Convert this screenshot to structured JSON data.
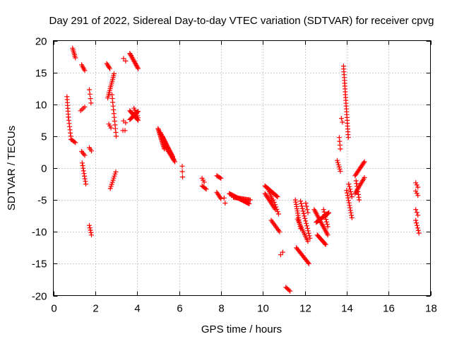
{
  "chart_data": {
    "type": "scatter",
    "title": "Day 291 of 2022, Sidereal Day-to-day VTEC variation (SDTVAR) for receiver cpvg",
    "xlabel": "GPS time / hours",
    "ylabel": "SDTVAR / TECUs",
    "xlim": [
      0,
      18
    ],
    "ylim": [
      -20,
      20
    ],
    "x_ticks": [
      0,
      2,
      4,
      6,
      8,
      10,
      12,
      14,
      16,
      18
    ],
    "y_ticks": [
      -20,
      -15,
      -10,
      -5,
      0,
      5,
      10,
      15,
      20
    ],
    "x_tick_labels": [
      "0",
      "2",
      "4",
      "6",
      "8",
      "10",
      "12",
      "14",
      "16",
      "18"
    ],
    "y_tick_labels": [
      "-20",
      "-15",
      "-10",
      "-5",
      "0",
      "5",
      "10",
      "15",
      "20"
    ],
    "grid": true,
    "marker": "+",
    "color": "#ff0000",
    "series": [
      {
        "name": "SDTVAR",
        "segments": [
          {
            "x0": 0.65,
            "y0": 11.2,
            "x1": 0.72,
            "y1": 8.0,
            "n": 8
          },
          {
            "x0": 0.72,
            "y0": 8.0,
            "x1": 0.85,
            "y1": 4.5,
            "n": 8
          },
          {
            "x0": 0.85,
            "y0": 4.5,
            "x1": 1.05,
            "y1": 4.0,
            "n": 5
          },
          {
            "x0": 0.92,
            "y0": 18.8,
            "x1": 1.05,
            "y1": 17.3,
            "n": 7
          },
          {
            "x0": 1.35,
            "y0": 16.2,
            "x1": 1.5,
            "y1": 15.3,
            "n": 5
          },
          {
            "x0": 1.3,
            "y0": 9.0,
            "x1": 1.5,
            "y1": 9.6,
            "n": 4
          },
          {
            "x0": 1.35,
            "y0": 2.6,
            "x1": 1.5,
            "y1": 2.0,
            "n": 4
          },
          {
            "x0": 1.38,
            "y0": 0.8,
            "x1": 1.55,
            "y1": -2.5,
            "n": 9
          },
          {
            "x0": 1.72,
            "y0": 12.3,
            "x1": 1.8,
            "y1": 10.2,
            "n": 4
          },
          {
            "x0": 1.72,
            "y0": 3.2,
            "x1": 1.82,
            "y1": 2.7,
            "n": 3
          },
          {
            "x0": 1.72,
            "y0": -9.0,
            "x1": 1.82,
            "y1": -10.5,
            "n": 5
          },
          {
            "x0": 2.55,
            "y0": 16.4,
            "x1": 2.7,
            "y1": 15.6,
            "n": 5
          },
          {
            "x0": 2.6,
            "y0": 11.0,
            "x1": 2.9,
            "y1": 14.8,
            "n": 14
          },
          {
            "x0": 2.65,
            "y0": 6.9,
            "x1": 2.75,
            "y1": 6.3,
            "n": 3
          },
          {
            "x0": 2.72,
            "y0": -3.2,
            "x1": 2.98,
            "y1": -0.6,
            "n": 9
          },
          {
            "x0": 2.8,
            "y0": 11.5,
            "x1": 3.0,
            "y1": 5.0,
            "n": 12
          },
          {
            "x0": 3.35,
            "y0": 17.2,
            "x1": 3.45,
            "y1": 16.8,
            "n": 2
          },
          {
            "x0": 3.35,
            "y0": 7.4,
            "x1": 3.45,
            "y1": 7.1,
            "n": 2
          },
          {
            "x0": 3.32,
            "y0": 5.9,
            "x1": 3.42,
            "y1": 5.9,
            "n": 2
          },
          {
            "x0": 3.65,
            "y0": 18.0,
            "x1": 4.05,
            "y1": 15.6,
            "n": 15
          },
          {
            "x0": 3.65,
            "y0": 7.6,
            "x1": 4.05,
            "y1": 8.9,
            "n": 12
          },
          {
            "x0": 3.65,
            "y0": 9.0,
            "x1": 4.05,
            "y1": 7.5,
            "n": 12
          },
          {
            "x0": 3.85,
            "y0": 9.4,
            "x1": 4.05,
            "y1": 7.9,
            "n": 6
          },
          {
            "x0": 5.0,
            "y0": 6.2,
            "x1": 5.3,
            "y1": 3.0,
            "n": 18
          },
          {
            "x0": 5.1,
            "y0": 5.6,
            "x1": 5.7,
            "y1": 1.8,
            "n": 22
          },
          {
            "x0": 5.2,
            "y0": 5.0,
            "x1": 5.75,
            "y1": 1.3,
            "n": 22
          },
          {
            "x0": 5.3,
            "y0": 3.6,
            "x1": 5.8,
            "y1": 1.0,
            "n": 14
          },
          {
            "x0": 6.15,
            "y0": 0.3,
            "x1": 6.17,
            "y1": -1.4,
            "n": 3
          },
          {
            "x0": 7.1,
            "y0": -1.6,
            "x1": 7.2,
            "y1": -2.2,
            "n": 3
          },
          {
            "x0": 7.1,
            "y0": -2.8,
            "x1": 7.3,
            "y1": -3.3,
            "n": 5
          },
          {
            "x0": 7.8,
            "y0": -1.2,
            "x1": 8.0,
            "y1": -1.6,
            "n": 5
          },
          {
            "x0": 7.8,
            "y0": -3.8,
            "x1": 8.0,
            "y1": -4.8,
            "n": 6
          },
          {
            "x0": 8.15,
            "y0": -4.7,
            "x1": 8.2,
            "y1": -5.5,
            "n": 2
          },
          {
            "x0": 8.4,
            "y0": -4.0,
            "x1": 9.35,
            "y1": -5.6,
            "n": 26
          },
          {
            "x0": 8.6,
            "y0": -4.6,
            "x1": 9.4,
            "y1": -5.0,
            "n": 18
          },
          {
            "x0": 10.1,
            "y0": -2.8,
            "x1": 10.7,
            "y1": -4.5,
            "n": 18
          },
          {
            "x0": 10.1,
            "y0": -4.0,
            "x1": 10.6,
            "y1": -6.5,
            "n": 14
          },
          {
            "x0": 10.25,
            "y0": -3.2,
            "x1": 10.45,
            "y1": -5.0,
            "n": 8
          },
          {
            "x0": 10.4,
            "y0": -8.2,
            "x1": 10.8,
            "y1": -10.0,
            "n": 10
          },
          {
            "x0": 10.5,
            "y0": -5.0,
            "x1": 10.75,
            "y1": -7.2,
            "n": 7
          },
          {
            "x0": 10.85,
            "y0": -13.6,
            "x1": 10.95,
            "y1": -13.2,
            "n": 2
          },
          {
            "x0": 11.1,
            "y0": -18.7,
            "x1": 11.3,
            "y1": -19.3,
            "n": 5
          },
          {
            "x0": 11.55,
            "y0": -5.0,
            "x1": 11.8,
            "y1": -9.5,
            "n": 14
          },
          {
            "x0": 11.6,
            "y0": -12.5,
            "x1": 12.2,
            "y1": -15.0,
            "n": 16
          },
          {
            "x0": 11.65,
            "y0": -8.0,
            "x1": 12.15,
            "y1": -11.5,
            "n": 14
          },
          {
            "x0": 11.8,
            "y0": -5.2,
            "x1": 12.25,
            "y1": -11.0,
            "n": 16
          },
          {
            "x0": 12.05,
            "y0": -5.5,
            "x1": 12.15,
            "y1": -7.0,
            "n": 4
          },
          {
            "x0": 12.45,
            "y0": -6.5,
            "x1": 13.1,
            "y1": -10.5,
            "n": 20
          },
          {
            "x0": 12.55,
            "y0": -8.5,
            "x1": 13.15,
            "y1": -7.0,
            "n": 18
          },
          {
            "x0": 12.6,
            "y0": -10.5,
            "x1": 13.0,
            "y1": -12.0,
            "n": 12
          },
          {
            "x0": 12.9,
            "y0": -6.5,
            "x1": 13.1,
            "y1": -9.2,
            "n": 8
          },
          {
            "x0": 13.55,
            "y0": 1.2,
            "x1": 13.7,
            "y1": -0.5,
            "n": 6
          },
          {
            "x0": 13.65,
            "y0": 4.8,
            "x1": 13.7,
            "y1": 3.0,
            "n": 4
          },
          {
            "x0": 13.75,
            "y0": 7.8,
            "x1": 13.8,
            "y1": 7.2,
            "n": 2
          },
          {
            "x0": 13.85,
            "y0": 16.0,
            "x1": 14.08,
            "y1": 4.8,
            "n": 26
          },
          {
            "x0": 14.0,
            "y0": -3.5,
            "x1": 14.25,
            "y1": -7.8,
            "n": 12
          },
          {
            "x0": 14.1,
            "y0": -2.5,
            "x1": 14.25,
            "y1": -4.5,
            "n": 6
          },
          {
            "x0": 14.4,
            "y0": -1.2,
            "x1": 14.85,
            "y1": 1.0,
            "n": 14
          },
          {
            "x0": 14.4,
            "y0": -4.0,
            "x1": 14.85,
            "y1": -1.5,
            "n": 12
          },
          {
            "x0": 14.45,
            "y0": -2.0,
            "x1": 14.6,
            "y1": -5.0,
            "n": 8
          },
          {
            "x0": 17.3,
            "y0": -2.3,
            "x1": 17.4,
            "y1": -3.0,
            "n": 3
          },
          {
            "x0": 17.3,
            "y0": -3.6,
            "x1": 17.4,
            "y1": -4.3,
            "n": 3
          },
          {
            "x0": 17.3,
            "y0": -6.5,
            "x1": 17.4,
            "y1": -7.4,
            "n": 3
          },
          {
            "x0": 17.3,
            "y0": -8.2,
            "x1": 17.45,
            "y1": -10.2,
            "n": 6
          }
        ]
      }
    ]
  }
}
